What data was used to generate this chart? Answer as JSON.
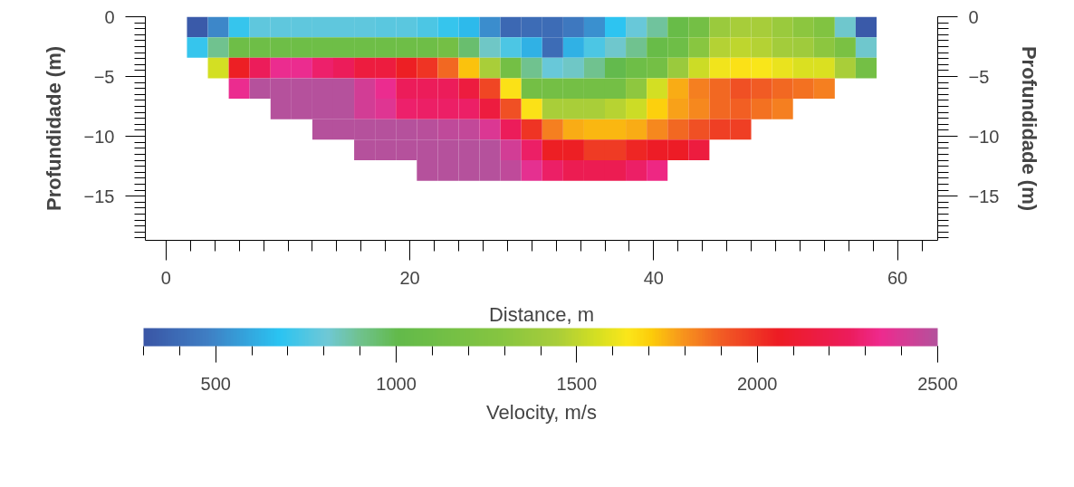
{
  "chart_data": {
    "type": "heatmap",
    "xlabel": "Distance, m",
    "ylabel": "Profundidade (m)",
    "y2label": "Profundidade (m)",
    "clabel": "Velocity, m/s",
    "x": [
      2.571,
      4.286,
      6.0,
      7.714,
      9.429,
      11.143,
      12.857,
      14.571,
      16.286,
      18.0,
      19.714,
      21.429,
      23.143,
      24.857,
      26.571,
      28.286,
      30.0,
      31.714,
      33.429,
      35.143,
      36.857,
      38.571,
      40.286,
      42.0,
      43.714,
      45.429,
      47.143,
      48.857,
      50.571,
      52.286,
      54.0,
      55.714,
      57.429
    ],
    "y": [
      -0.857,
      -2.571,
      -4.286,
      -6.0,
      -7.714,
      -9.429,
      -11.143,
      -12.857
    ],
    "cells": [
      [
        320,
        500,
        700,
        780,
        780,
        780,
        780,
        780,
        780,
        770,
        770,
        740,
        700,
        650,
        520,
        380,
        400,
        400,
        450,
        530,
        680,
        790,
        880,
        1050,
        1150,
        1380,
        1440,
        1440,
        1380,
        1320,
        1250,
        820,
        320
      ],
      [
        700,
        900,
        1100,
        1100,
        1100,
        1100,
        1100,
        1100,
        1100,
        1100,
        1100,
        1100,
        1150,
        950,
        830,
        740,
        620,
        400,
        620,
        740,
        820,
        900,
        1050,
        1100,
        1300,
        1470,
        1500,
        1470,
        1420,
        1400,
        1320,
        1200,
        820
      ],
      [
        null,
        1550,
        2050,
        2250,
        2350,
        2350,
        2280,
        2250,
        2150,
        2150,
        2050,
        2000,
        1880,
        1720,
        1450,
        1150,
        900,
        790,
        830,
        900,
        1000,
        1100,
        1150,
        1380,
        1530,
        1620,
        1650,
        1640,
        1600,
        1570,
        1570,
        1450,
        1150
      ],
      [
        null,
        null,
        2350,
        2500,
        2500,
        2500,
        2500,
        2500,
        2420,
        2350,
        2250,
        2250,
        2250,
        2150,
        1950,
        1650,
        1150,
        1150,
        1150,
        1150,
        1150,
        1330,
        1550,
        1760,
        1830,
        1880,
        1930,
        1900,
        1880,
        1860,
        1830,
        null,
        null
      ],
      [
        null,
        null,
        null,
        null,
        2500,
        2500,
        2500,
        2500,
        2420,
        2380,
        2280,
        2270,
        2270,
        2270,
        2150,
        1930,
        1650,
        1450,
        1450,
        1450,
        1480,
        1530,
        1700,
        1770,
        1820,
        1880,
        1890,
        1860,
        1830,
        null,
        null,
        null,
        null
      ],
      [
        null,
        null,
        null,
        null,
        null,
        null,
        2500,
        2500,
        2500,
        2500,
        2500,
        2490,
        2470,
        2460,
        2390,
        2250,
        2000,
        1830,
        1760,
        1740,
        1740,
        1760,
        1820,
        1880,
        1930,
        1970,
        1970,
        null,
        null,
        null,
        null,
        null,
        null
      ],
      [
        null,
        null,
        null,
        null,
        null,
        null,
        null,
        null,
        2500,
        2500,
        2500,
        2500,
        2500,
        2500,
        2500,
        2420,
        2270,
        2050,
        2050,
        1980,
        1980,
        2030,
        2070,
        2070,
        2150,
        null,
        null,
        null,
        null,
        null,
        null,
        null,
        null
      ],
      [
        null,
        null,
        null,
        null,
        null,
        null,
        null,
        null,
        null,
        null,
        null,
        2500,
        2500,
        2500,
        2500,
        2470,
        2370,
        2270,
        2220,
        2220,
        2220,
        2270,
        2320,
        null,
        null,
        null,
        null,
        null,
        null,
        null,
        null,
        null,
        null
      ]
    ],
    "xlim": [
      -1.7,
      63.3
    ],
    "xticks": [
      0,
      20,
      40,
      60
    ],
    "ylim": [
      -18.7,
      0
    ],
    "yticks": [
      0,
      -5,
      -10,
      -15
    ],
    "y2lim": [
      -18.7,
      0
    ],
    "y2ticks": [
      0,
      -5,
      -10,
      -15
    ],
    "clim": [
      300,
      2500
    ],
    "cticks": [
      500,
      1000,
      1500,
      2000,
      2500
    ]
  }
}
